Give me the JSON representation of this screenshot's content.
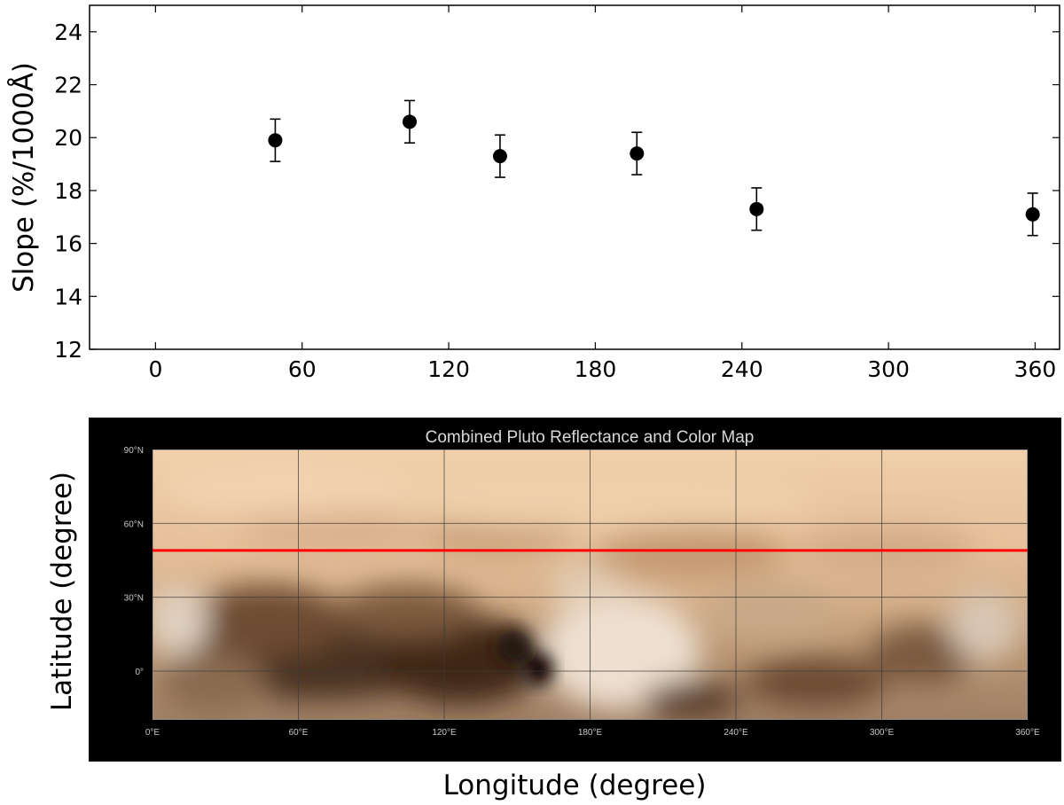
{
  "chart_data": [
    {
      "type": "scatter",
      "title": "",
      "xlabel": "",
      "ylabel": "Slope (%/1000Å)",
      "xlim": [
        -27,
        370
      ],
      "ylim": [
        12,
        25
      ],
      "x_ticks": [
        0,
        60,
        120,
        180,
        240,
        300,
        360
      ],
      "y_ticks": [
        12,
        14,
        16,
        18,
        20,
        22,
        24
      ],
      "grid": false,
      "marker_color": "#000000",
      "series": [
        {
          "x": [
            49,
            104,
            141,
            197,
            246,
            359
          ],
          "y": [
            19.9,
            20.6,
            19.3,
            19.4,
            17.3,
            17.1
          ],
          "err": [
            0.8,
            0.8,
            0.8,
            0.8,
            0.8,
            0.8
          ]
        }
      ]
    },
    {
      "type": "map",
      "title": "Combined Pluto Reflectance and Color Map",
      "xlabel": "Longitude (degree)",
      "ylabel": "Latitude (degree)",
      "lon_labels": [
        "0°E",
        "60°E",
        "120°E",
        "180°E",
        "240°E",
        "300°E",
        "360°E"
      ],
      "lat_labels": [
        "90°N",
        "60°N",
        "30°N",
        "0°"
      ],
      "highlight_latitude": 49,
      "highlight_color": "#ff0000",
      "map_bg": "#000000"
    }
  ]
}
